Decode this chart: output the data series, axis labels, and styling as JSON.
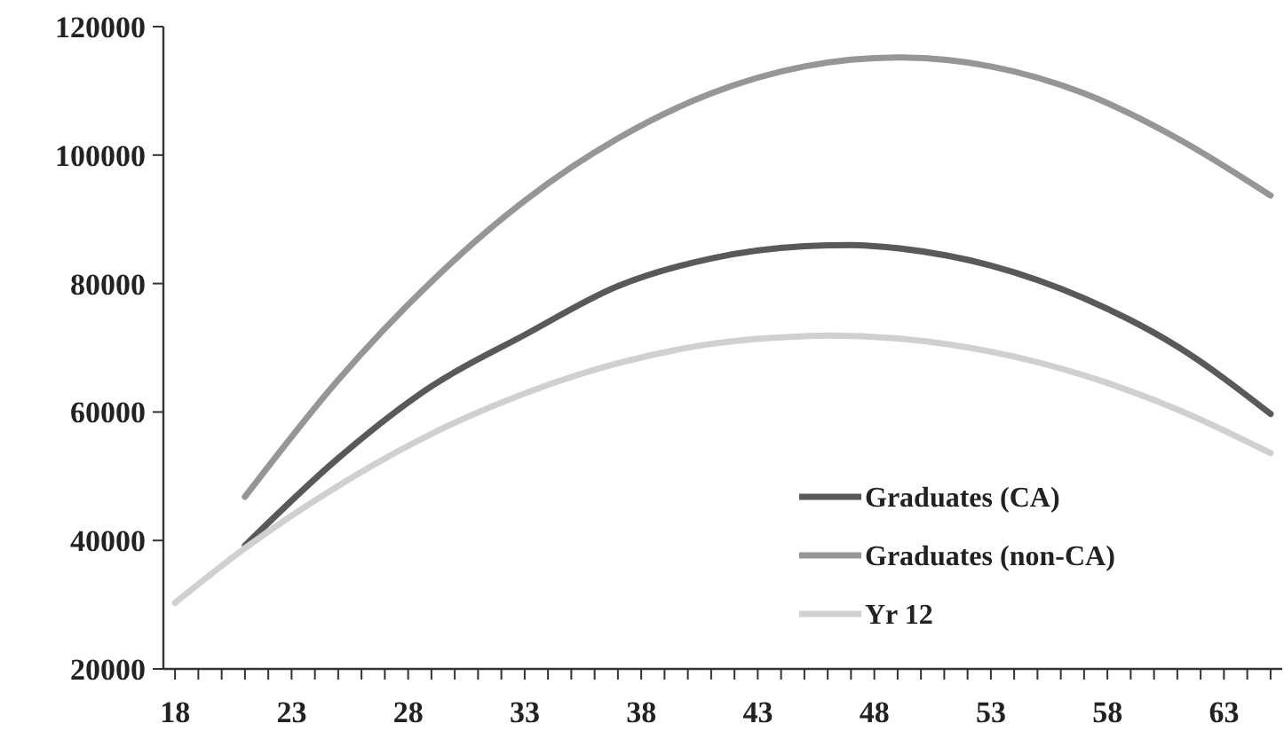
{
  "chart_data": {
    "type": "line",
    "xlim": [
      17.5,
      65.5
    ],
    "xticks": [
      18,
      23,
      28,
      33,
      38,
      43,
      48,
      53,
      58,
      63
    ],
    "ylim": [
      20000,
      120000
    ],
    "yticks": [
      20000,
      40000,
      60000,
      80000,
      100000,
      120000
    ],
    "grid": false,
    "legend": "bottom right",
    "marker": "none",
    "line_style": "solid",
    "series": [
      {
        "name": "Graduates (CA)",
        "color": "#595959",
        "x": [
          21,
          25,
          29,
          33,
          37,
          41,
          45,
          47,
          49,
          53,
          57,
          61,
          65
        ],
        "values": [
          39200,
          52800,
          64000,
          72000,
          79600,
          83900,
          85800,
          86000,
          85500,
          82800,
          77700,
          70200,
          59700
        ]
      },
      {
        "name": "Graduates (non-CA)",
        "color": "#969696",
        "x": [
          21,
          25,
          29,
          33,
          37,
          41,
          45,
          49,
          53,
          57,
          61,
          65
        ],
        "values": [
          46800,
          65000,
          80300,
          92900,
          102600,
          109600,
          113800,
          115200,
          113800,
          109600,
          102600,
          93700
        ]
      },
      {
        "name": "Yr 12",
        "color": "#d0d0d0",
        "x": [
          18,
          21,
          25,
          29,
          33,
          37,
          41,
          45,
          46,
          49,
          53,
          57,
          61,
          65
        ],
        "values": [
          30300,
          38800,
          48500,
          56600,
          62900,
          67600,
          70600,
          71800,
          71900,
          71450,
          69400,
          65700,
          60400,
          53600
        ]
      }
    ]
  }
}
